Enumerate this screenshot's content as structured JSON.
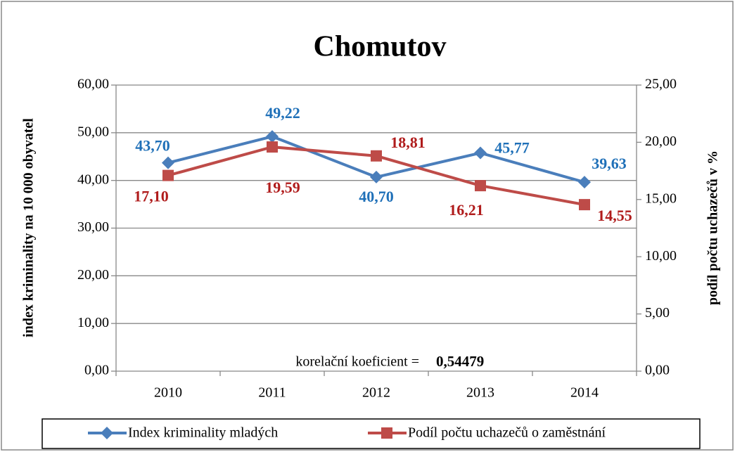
{
  "chart_data": {
    "type": "line",
    "title": "Chomutov",
    "categories": [
      "2010",
      "2011",
      "2012",
      "2013",
      "2014"
    ],
    "ylabel": "index kriminality na 10 000 obyvatel",
    "y2label": "podíl počtu uchazečů v %",
    "ylim": [
      0,
      60
    ],
    "yticks": [
      {
        "value": 0,
        "label": "0,00"
      },
      {
        "value": 10,
        "label": "10,00"
      },
      {
        "value": 20,
        "label": "20,00"
      },
      {
        "value": 30,
        "label": "30,00"
      },
      {
        "value": 40,
        "label": "40,00"
      },
      {
        "value": 50,
        "label": "50,00"
      },
      {
        "value": 60,
        "label": "60,00"
      }
    ],
    "y2lim": [
      0,
      25
    ],
    "y2ticks": [
      {
        "value": 0,
        "label": "0,00"
      },
      {
        "value": 5,
        "label": "5,00"
      },
      {
        "value": 10,
        "label": "10,00"
      },
      {
        "value": 15,
        "label": "15,00"
      },
      {
        "value": 20,
        "label": "20,00"
      },
      {
        "value": 25,
        "label": "25,00"
      }
    ],
    "grid": true,
    "legend": "bottom",
    "series": [
      {
        "name": "Index kriminality mladých",
        "color": "#4a7ebb",
        "label_color": "#1f70b8",
        "marker": "diamond",
        "values": [
          43.7,
          49.22,
          40.7,
          45.77,
          39.63
        ],
        "value_labels": [
          "43,70",
          "49,22",
          "40,70",
          "45,77",
          "39,63"
        ]
      },
      {
        "name": "Podíl počtu uchazečů o zaměstnání",
        "color": "#be4b48",
        "label_color": "#b01c1c",
        "marker": "square",
        "axis": "y2",
        "values": [
          17.1,
          19.59,
          18.81,
          16.21,
          14.55
        ],
        "value_labels": [
          "17,10",
          "19,59",
          "18,81",
          "16,21",
          "14,55"
        ]
      }
    ],
    "annotations": [
      "korelační koeficient =",
      "0,54479"
    ]
  }
}
